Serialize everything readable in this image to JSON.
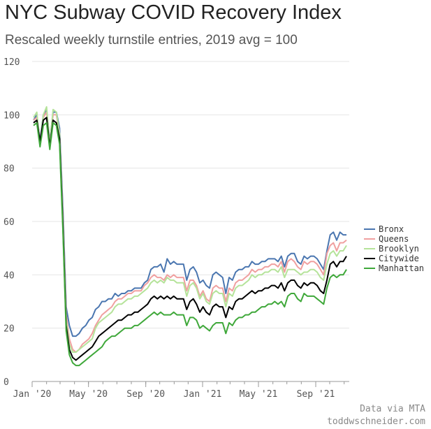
{
  "title": "NYC Subway COVID Recovery Index",
  "subtitle": "Rescaled weekly turnstile entries, 2019 avg = 100",
  "credit_line1": "Data via MTA",
  "credit_line2": "toddwschneider.com",
  "chart_data": {
    "type": "line",
    "title": "NYC Subway COVID Recovery Index",
    "subtitle": "Rescaled weekly turnstile entries, 2019 avg = 100",
    "xlabel": "",
    "ylabel": "",
    "ylim": [
      0,
      120
    ],
    "xlim": [
      "2020-01-01",
      "2021-11-12"
    ],
    "yticks": [
      0,
      20,
      40,
      60,
      80,
      100,
      120
    ],
    "xticks": [
      {
        "date": "2020-01-01",
        "label": "Jan '20"
      },
      {
        "date": "2020-05-01",
        "label": "May '20"
      },
      {
        "date": "2020-09-01",
        "label": "Sep '20"
      },
      {
        "date": "2021-01-01",
        "label": "Jan '21"
      },
      {
        "date": "2021-05-01",
        "label": "May '21"
      },
      {
        "date": "2021-09-01",
        "label": "Sep '21"
      }
    ],
    "grid": true,
    "legend_position": "right",
    "x": [
      "2020-01-04",
      "2020-01-11",
      "2020-01-18",
      "2020-01-25",
      "2020-02-01",
      "2020-02-08",
      "2020-02-15",
      "2020-02-22",
      "2020-02-29",
      "2020-03-07",
      "2020-03-14",
      "2020-03-21",
      "2020-03-28",
      "2020-04-04",
      "2020-04-11",
      "2020-04-18",
      "2020-04-25",
      "2020-05-02",
      "2020-05-09",
      "2020-05-16",
      "2020-05-23",
      "2020-05-30",
      "2020-06-06",
      "2020-06-13",
      "2020-06-20",
      "2020-06-27",
      "2020-07-04",
      "2020-07-11",
      "2020-07-18",
      "2020-07-25",
      "2020-08-01",
      "2020-08-08",
      "2020-08-15",
      "2020-08-22",
      "2020-08-29",
      "2020-09-05",
      "2020-09-12",
      "2020-09-19",
      "2020-09-26",
      "2020-10-03",
      "2020-10-10",
      "2020-10-17",
      "2020-10-24",
      "2020-10-31",
      "2020-11-07",
      "2020-11-14",
      "2020-11-21",
      "2020-11-28",
      "2020-12-05",
      "2020-12-12",
      "2020-12-19",
      "2020-12-26",
      "2021-01-02",
      "2021-01-09",
      "2021-01-16",
      "2021-01-23",
      "2021-01-30",
      "2021-02-06",
      "2021-02-13",
      "2021-02-20",
      "2021-02-27",
      "2021-03-06",
      "2021-03-13",
      "2021-03-20",
      "2021-03-27",
      "2021-04-03",
      "2021-04-10",
      "2021-04-17",
      "2021-04-24",
      "2021-05-01",
      "2021-05-08",
      "2021-05-15",
      "2021-05-22",
      "2021-05-29",
      "2021-06-05",
      "2021-06-12",
      "2021-06-19",
      "2021-06-26",
      "2021-07-03",
      "2021-07-10",
      "2021-07-17",
      "2021-07-24",
      "2021-07-31",
      "2021-08-07",
      "2021-08-14",
      "2021-08-21",
      "2021-08-28",
      "2021-09-04",
      "2021-09-11",
      "2021-09-18",
      "2021-09-25",
      "2021-10-02",
      "2021-10-09",
      "2021-10-16",
      "2021-10-23",
      "2021-10-30",
      "2021-11-06"
    ],
    "series": [
      {
        "name": "Bronx",
        "color": "#4a76b0",
        "values": [
          98,
          100,
          90,
          100,
          102,
          90,
          101,
          101,
          95,
          65,
          28,
          21,
          17,
          17,
          18,
          20,
          21,
          23,
          24,
          27,
          28,
          30,
          30,
          31,
          31,
          33,
          32,
          33,
          33,
          34,
          34,
          35,
          35,
          35,
          37,
          38,
          42,
          43,
          43,
          44,
          41,
          46,
          44,
          45,
          44,
          44,
          44,
          38,
          42,
          43,
          41,
          37,
          38,
          36,
          35,
          40,
          41,
          40,
          39,
          33,
          39,
          38,
          41,
          42,
          42,
          43,
          43,
          45,
          44,
          44,
          45,
          45,
          46,
          46,
          46,
          45,
          47,
          43,
          47,
          48,
          48,
          45,
          44,
          47,
          46,
          47,
          47,
          46,
          44,
          42,
          49,
          55,
          56,
          53,
          56,
          55,
          55
        ]
      },
      {
        "name": "Queens",
        "color": "#f0a0a0",
        "values": [
          98,
          99,
          89,
          99,
          101,
          89,
          100,
          100,
          93,
          62,
          25,
          16,
          12,
          11,
          12,
          14,
          15,
          16,
          18,
          21,
          23,
          25,
          26,
          27,
          28,
          30,
          31,
          31,
          32,
          33,
          33,
          34,
          34,
          34,
          36,
          37,
          39,
          40,
          39,
          39,
          38,
          40,
          39,
          40,
          39,
          39,
          39,
          34,
          38,
          38,
          36,
          32,
          34,
          31,
          30,
          35,
          36,
          35,
          35,
          30,
          35,
          34,
          37,
          38,
          38,
          39,
          40,
          42,
          41,
          42,
          42,
          43,
          43,
          44,
          44,
          43,
          45,
          41,
          45,
          46,
          45,
          43,
          42,
          45,
          44,
          45,
          45,
          44,
          42,
          40,
          48,
          51,
          52,
          49,
          52,
          52,
          53
        ]
      },
      {
        "name": "Brooklyn",
        "color": "#b5e39a",
        "values": [
          99,
          101,
          89,
          100,
          103,
          89,
          102,
          101,
          93,
          60,
          23,
          14,
          11,
          11,
          12,
          13,
          14,
          15,
          16,
          20,
          22,
          23,
          24,
          25,
          26,
          28,
          29,
          29,
          30,
          31,
          31,
          32,
          32,
          33,
          34,
          35,
          37,
          38,
          37,
          38,
          37,
          39,
          38,
          38,
          37,
          37,
          37,
          32,
          36,
          37,
          35,
          31,
          33,
          30,
          29,
          33,
          34,
          33,
          33,
          28,
          33,
          32,
          35,
          36,
          36,
          37,
          38,
          40,
          39,
          40,
          40,
          41,
          41,
          42,
          42,
          41,
          43,
          39,
          42,
          42,
          42,
          41,
          40,
          41,
          41,
          42,
          42,
          41,
          39,
          38,
          44,
          48,
          49,
          47,
          49,
          49,
          51
        ]
      },
      {
        "name": "Citywide",
        "color": "#000000",
        "values": [
          97,
          98,
          90,
          98,
          99,
          88,
          98,
          97,
          91,
          59,
          21,
          12,
          9,
          8,
          9,
          10,
          11,
          12,
          13,
          15,
          17,
          18,
          19,
          20,
          21,
          22,
          23,
          23,
          24,
          25,
          25,
          26,
          26,
          27,
          28,
          29,
          31,
          32,
          31,
          32,
          31,
          32,
          31,
          32,
          31,
          31,
          31,
          27,
          30,
          31,
          29,
          26,
          28,
          26,
          25,
          28,
          29,
          28,
          28,
          24,
          28,
          27,
          30,
          31,
          31,
          32,
          33,
          34,
          33,
          34,
          34,
          35,
          35,
          36,
          36,
          35,
          37,
          34,
          37,
          38,
          38,
          36,
          35,
          37,
          36,
          37,
          37,
          36,
          34,
          33,
          38,
          44,
          45,
          43,
          45,
          45,
          47
        ]
      },
      {
        "name": "Manhattan",
        "color": "#3fa83a",
        "values": [
          96,
          97,
          88,
          96,
          97,
          87,
          97,
          96,
          89,
          57,
          19,
          10,
          7,
          6,
          6,
          7,
          8,
          9,
          10,
          11,
          12,
          13,
          15,
          16,
          17,
          17,
          18,
          19,
          20,
          20,
          20,
          21,
          21,
          22,
          23,
          24,
          25,
          26,
          25,
          26,
          25,
          25,
          25,
          26,
          25,
          25,
          25,
          21,
          24,
          24,
          23,
          20,
          21,
          20,
          19,
          21,
          22,
          22,
          22,
          18,
          22,
          21,
          23,
          24,
          24,
          25,
          25,
          26,
          26,
          27,
          28,
          28,
          29,
          29,
          30,
          29,
          30,
          28,
          32,
          33,
          33,
          31,
          30,
          33,
          32,
          32,
          32,
          31,
          30,
          29,
          35,
          39,
          40,
          39,
          40,
          40,
          42
        ]
      }
    ]
  }
}
